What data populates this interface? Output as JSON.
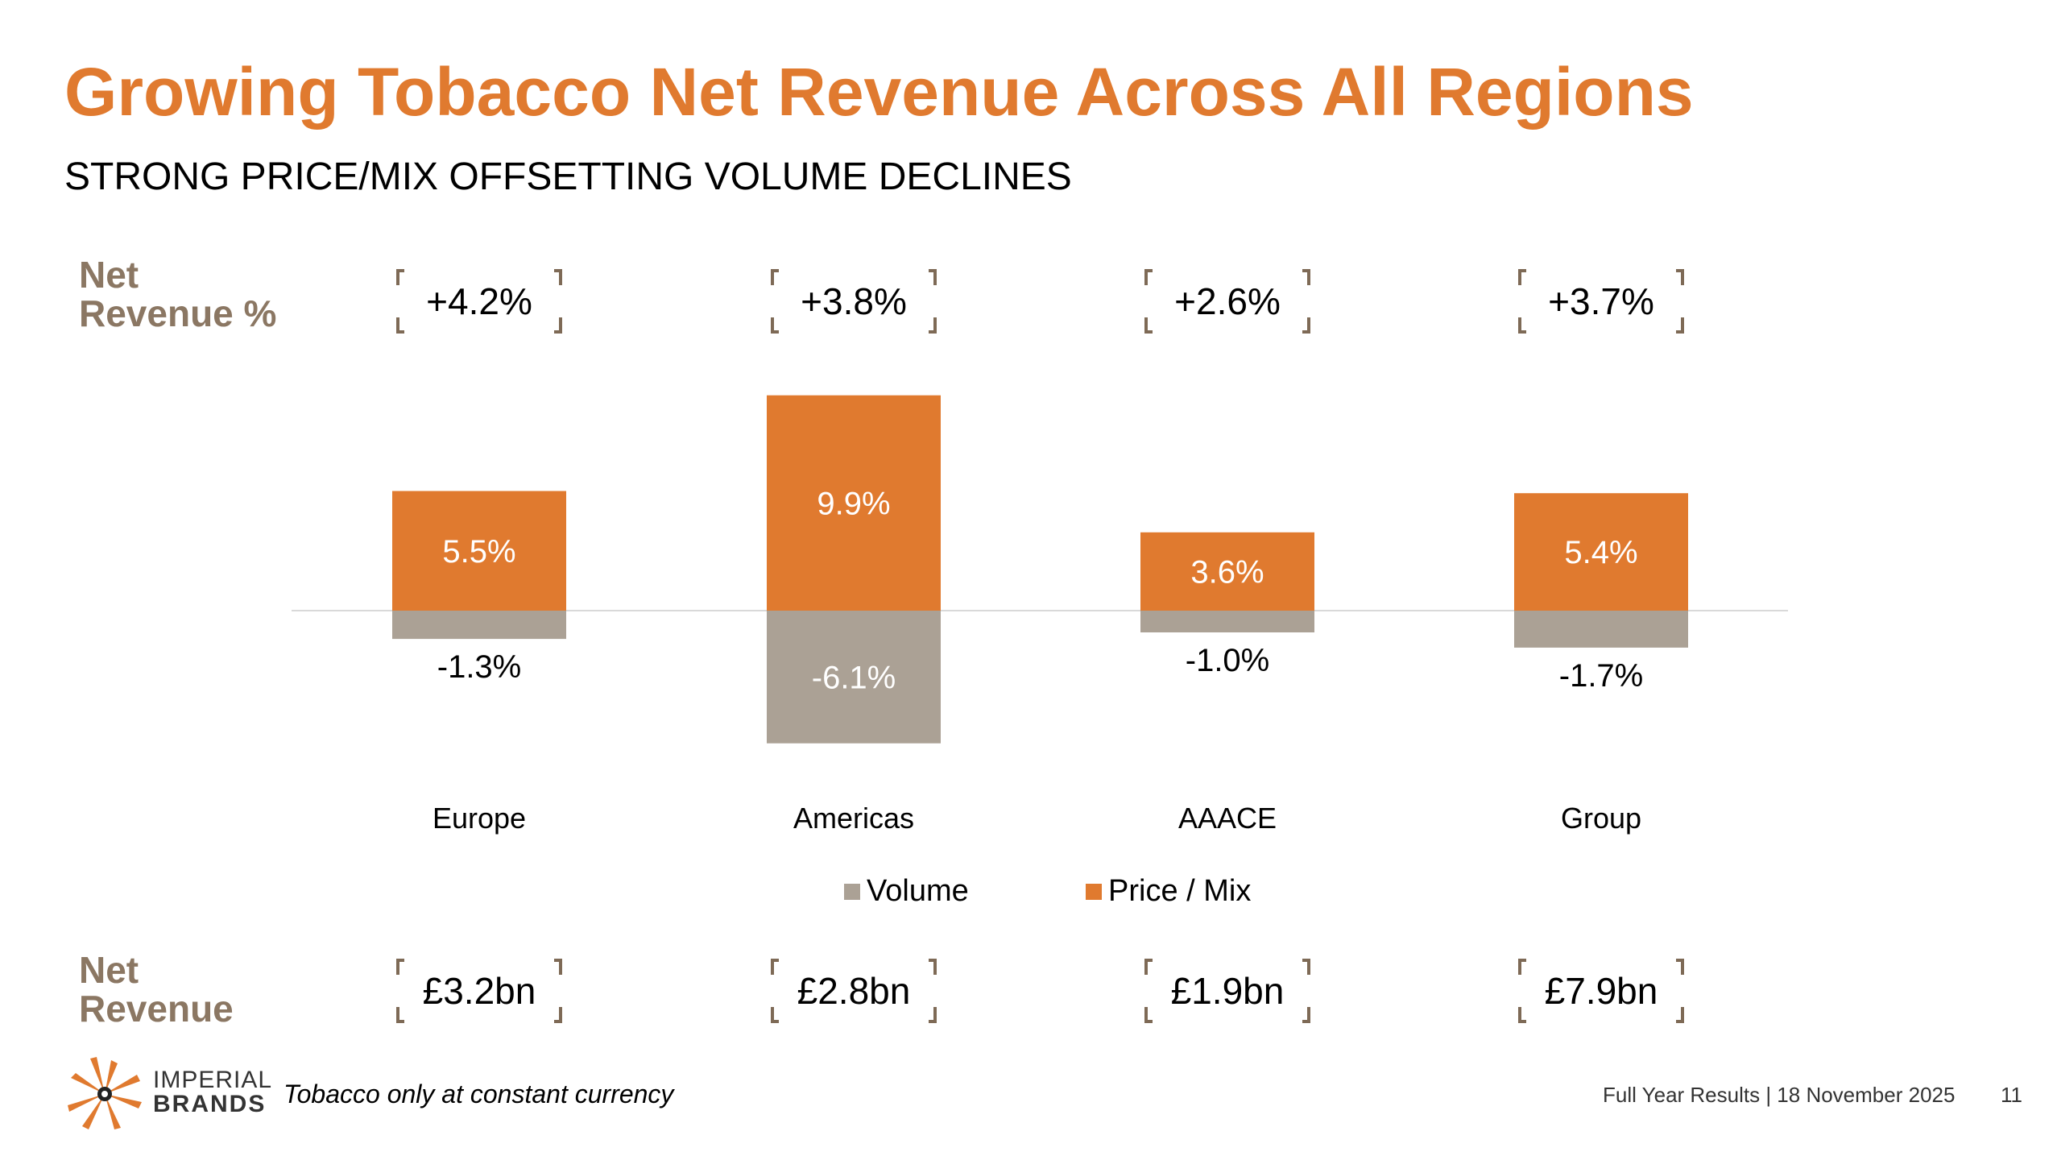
{
  "title": "Growing Tobacco Net Revenue Across All Regions",
  "subtitle": "STRONG PRICE/MIX OFFSETTING VOLUME DECLINES",
  "labels": {
    "net_revenue_pct_line1": "Net",
    "net_revenue_pct_line2": "Revenue %",
    "net_revenue_line1": "Net",
    "net_revenue_line2": "Revenue"
  },
  "net_revenue_pct": [
    "+4.2%",
    "+3.8%",
    "+2.6%",
    "+3.7%"
  ],
  "net_revenue": [
    "£3.2bn",
    "£2.8bn",
    "£1.9bn",
    "£7.9bn"
  ],
  "colors": {
    "title": "#E07A2F",
    "price_mix": "#E07A2F",
    "volume": "#ABA195",
    "side_label": "#8B7763",
    "bracket": "#7E6A56"
  },
  "chart_data": {
    "type": "bar",
    "stacked": true,
    "categories": [
      "Europe",
      "Americas",
      "AAACE",
      "Group"
    ],
    "series": [
      {
        "name": "Volume",
        "values": [
          -1.3,
          -6.1,
          -1.0,
          -1.7
        ],
        "labels": [
          "-1.3%",
          "-6.1%",
          "-1.0%",
          "-1.7%"
        ],
        "color": "#ABA195"
      },
      {
        "name": "Price / Mix",
        "values": [
          5.5,
          9.9,
          3.6,
          5.4
        ],
        "labels": [
          "5.5%",
          "9.9%",
          "3.6%",
          "5.4%"
        ],
        "color": "#E07A2F"
      }
    ],
    "ylim": [
      -6.1,
      9.9
    ],
    "legend": "bottom-center",
    "grid": false
  },
  "footnote": "Tobacco only at constant currency",
  "footer": "Full Year Results | 18 November 2025",
  "page_number": "11",
  "logo": {
    "line1": "IMPERIAL",
    "line2": "BRANDS"
  }
}
